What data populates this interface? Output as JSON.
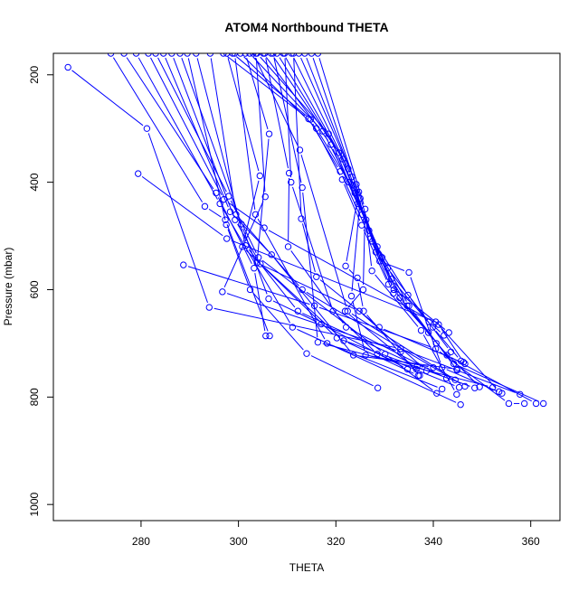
{
  "chart_data": {
    "type": "line",
    "title": "ATOM4 Northbound THETA",
    "xlabel": "THETA",
    "ylabel": "Pressure (mbar)",
    "xlim": [
      262,
      366
    ],
    "ylim": [
      1030,
      160
    ],
    "y_reversed": true,
    "grid": false,
    "legend": "none",
    "x_ticks": [
      280,
      300,
      320,
      340,
      360
    ],
    "y_ticks": [
      200,
      400,
      600,
      800,
      1000
    ],
    "color": "#0000ff",
    "series": [
      {
        "points": [
          [
            265.0,
            186
          ],
          [
            281.2,
            300
          ],
          [
            294.0,
            633
          ],
          [
            333.3,
            710
          ],
          [
            357.8,
            795
          ]
        ]
      },
      {
        "points": [
          [
            279.4,
            384
          ],
          [
            297.6,
            505
          ],
          [
            340.5,
            660
          ],
          [
            353.5,
            790
          ]
        ]
      },
      {
        "points": [
          [
            288.7,
            554
          ],
          [
            315.6,
            630
          ],
          [
            340.5,
            710
          ],
          [
            355.5,
            812
          ],
          [
            358.7,
            812
          ]
        ]
      },
      {
        "points": [
          [
            273.8,
            160
          ],
          [
            293.1,
            445
          ],
          [
            297.3,
            470
          ],
          [
            306.4,
            686
          ]
        ]
      },
      {
        "points": [
          [
            276.5,
            160
          ],
          [
            295.4,
            420
          ],
          [
            303.2,
            560
          ],
          [
            305.6,
            686
          ]
        ]
      },
      {
        "points": [
          [
            279.0,
            160
          ],
          [
            296.2,
            440
          ],
          [
            311.1,
            670
          ],
          [
            345.6,
            814
          ]
        ]
      },
      {
        "points": [
          [
            281.5,
            160
          ],
          [
            297.0,
            432
          ],
          [
            305.3,
            485
          ],
          [
            341.1,
            665
          ],
          [
            346.2,
            735
          ]
        ]
      },
      {
        "points": [
          [
            283.0,
            160
          ],
          [
            298.0,
            426
          ],
          [
            304.1,
            540
          ],
          [
            330.1,
            720
          ],
          [
            340.7,
            793
          ]
        ]
      },
      {
        "points": [
          [
            284.6,
            160
          ],
          [
            298.3,
            455
          ],
          [
            306.8,
            535
          ],
          [
            323.6,
            722
          ],
          [
            344.8,
            748
          ]
        ]
      },
      {
        "points": [
          [
            286.3,
            160
          ],
          [
            299.3,
            470
          ],
          [
            304.5,
            552
          ],
          [
            321.6,
            695
          ],
          [
            336.9,
            760
          ]
        ]
      },
      {
        "points": [
          [
            288.0,
            160
          ],
          [
            300.6,
            478
          ],
          [
            306.2,
            617
          ],
          [
            317.0,
            664
          ],
          [
            334.7,
            748
          ]
        ]
      },
      {
        "points": [
          [
            289.5,
            160
          ],
          [
            297.5,
            479
          ],
          [
            302.4,
            600
          ],
          [
            314.0,
            719
          ],
          [
            328.6,
            783
          ]
        ]
      },
      {
        "points": [
          [
            291.3,
            160
          ],
          [
            301.5,
            518
          ],
          [
            312.2,
            640
          ],
          [
            336.7,
            742
          ]
        ]
      },
      {
        "points": [
          [
            294.2,
            160
          ],
          [
            299.5,
            460
          ],
          [
            313.1,
            600
          ],
          [
            346.5,
            780
          ]
        ]
      },
      {
        "points": [
          [
            297.6,
            160
          ],
          [
            304.4,
            388
          ],
          [
            300.8,
            520
          ],
          [
            320.2,
            690
          ],
          [
            348.5,
            783
          ]
        ]
      },
      {
        "points": [
          [
            299.2,
            160
          ],
          [
            303.5,
            460
          ],
          [
            318.2,
            700
          ],
          [
            341.8,
            785
          ]
        ]
      },
      {
        "points": [
          [
            301.4,
            160
          ],
          [
            306.3,
            310
          ],
          [
            303.8,
            550
          ],
          [
            324.8,
            640
          ],
          [
            338.6,
            751
          ]
        ]
      },
      {
        "points": [
          [
            303.6,
            160
          ],
          [
            305.5,
            427
          ],
          [
            296.7,
            604
          ],
          [
            333.3,
            716
          ]
        ]
      },
      {
        "points": [
          [
            305.4,
            160
          ],
          [
            310.4,
            383
          ],
          [
            310.2,
            520
          ],
          [
            322.1,
            670
          ],
          [
            342.7,
            765
          ]
        ]
      },
      {
        "points": [
          [
            307.1,
            160
          ],
          [
            313.1,
            410
          ],
          [
            316.3,
            698
          ],
          [
            352.2,
            782
          ]
        ]
      },
      {
        "points": [
          [
            309.5,
            160
          ],
          [
            310.8,
            400
          ],
          [
            319.4,
            640
          ],
          [
            328.5,
            720
          ],
          [
            345.3,
            782
          ]
        ]
      },
      {
        "points": [
          [
            311.3,
            160
          ],
          [
            312.9,
            468
          ],
          [
            316.0,
            576
          ],
          [
            328.9,
            670
          ],
          [
            346.5,
            738
          ]
        ]
      },
      {
        "points": [
          [
            296.9,
            160
          ],
          [
            314.4,
            282
          ],
          [
            320.9,
            380
          ],
          [
            327.1,
            505
          ],
          [
            331.8,
            607
          ],
          [
            339.0,
            680
          ]
        ]
      },
      {
        "points": [
          [
            298.8,
            160
          ],
          [
            314.8,
            283
          ],
          [
            321.3,
            395
          ],
          [
            325.3,
            480
          ],
          [
            330.8,
            590
          ],
          [
            343.2,
            680
          ]
        ]
      },
      {
        "points": [
          [
            300.4,
            160
          ],
          [
            316.0,
            300
          ],
          [
            322.7,
            400
          ],
          [
            328.5,
            520
          ],
          [
            334.8,
            610
          ],
          [
            343.6,
            716
          ]
        ]
      },
      {
        "points": [
          [
            302.3,
            160
          ],
          [
            317.3,
            305
          ],
          [
            323.9,
            420
          ],
          [
            329.5,
            540
          ],
          [
            335.0,
            630
          ],
          [
            344.9,
            750
          ]
        ]
      },
      {
        "points": [
          [
            303.8,
            160
          ],
          [
            318.5,
            310
          ],
          [
            324.5,
            440
          ],
          [
            330.6,
            560
          ],
          [
            339.1,
            660
          ],
          [
            342.2,
            685
          ]
        ]
      },
      {
        "points": [
          [
            305.1,
            160
          ],
          [
            319.0,
            330
          ],
          [
            325.4,
            460
          ],
          [
            331.4,
            580
          ],
          [
            339.9,
            670
          ],
          [
            345.7,
            733
          ]
        ]
      },
      {
        "points": [
          [
            306.7,
            160
          ],
          [
            320.6,
            345
          ],
          [
            326.2,
            470
          ],
          [
            327.4,
            565
          ],
          [
            337.5,
            676
          ],
          [
            344.8,
            795
          ]
        ]
      },
      {
        "points": [
          [
            307.9,
            160
          ],
          [
            321.4,
            357
          ],
          [
            326.8,
            490
          ],
          [
            331.9,
            600
          ],
          [
            340.6,
            700
          ],
          [
            349.5,
            781
          ]
        ]
      },
      {
        "points": [
          [
            309.2,
            160
          ],
          [
            322.5,
            375
          ],
          [
            327.5,
            510
          ],
          [
            333.1,
            615
          ],
          [
            342.8,
            722
          ],
          [
            361.1,
            812
          ]
        ]
      },
      {
        "points": [
          [
            310.9,
            160
          ],
          [
            323.3,
            390
          ],
          [
            328.2,
            530
          ],
          [
            334.6,
            630
          ],
          [
            344.2,
            738
          ],
          [
            362.6,
            812
          ]
        ]
      },
      {
        "points": [
          [
            312.4,
            160
          ],
          [
            324.2,
            404
          ],
          [
            329.0,
            547
          ],
          [
            335.0,
            568
          ],
          [
            341.8,
            745
          ],
          [
            354.1,
            793
          ]
        ]
      },
      {
        "points": [
          [
            313.6,
            160
          ],
          [
            324.7,
            418
          ],
          [
            322.0,
            556
          ],
          [
            324.4,
            578
          ],
          [
            325.7,
            640
          ],
          [
            337.2,
            760
          ]
        ]
      },
      {
        "points": [
          [
            303.0,
            160
          ],
          [
            312.6,
            340
          ],
          [
            322.4,
            640
          ],
          [
            344.5,
            768
          ]
        ]
      },
      {
        "points": [
          [
            315.0,
            160
          ],
          [
            325.0,
            430
          ],
          [
            323.2,
            612
          ],
          [
            326.1,
            722
          ],
          [
            340.0,
            745
          ]
        ]
      },
      {
        "points": [
          [
            316.3,
            160
          ],
          [
            326.0,
            450
          ],
          [
            325.6,
            600
          ],
          [
            321.9,
            640
          ],
          [
            336.5,
            748
          ]
        ]
      }
    ]
  }
}
